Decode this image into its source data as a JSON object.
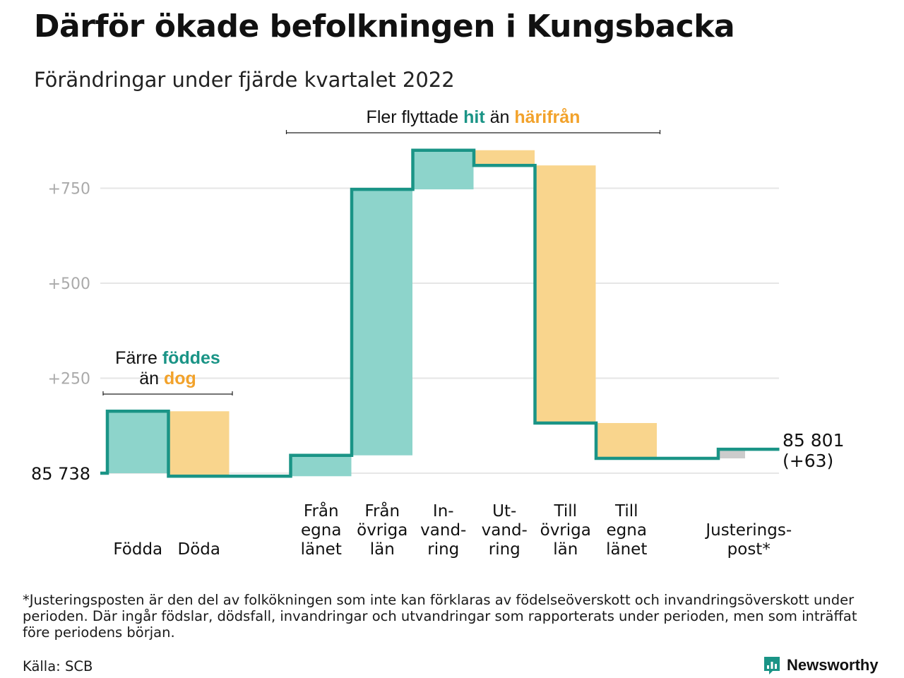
{
  "title": "Därför ökade befolkningen i Kungsbacka",
  "subtitle": "Förändringar under fjärde kvartalet 2022",
  "colors": {
    "increase": "#8dd4cb",
    "decrease": "#f9d58d",
    "adjustment": "#cccccc",
    "line": "#1a9486",
    "grid": "#e6e6e6",
    "axis_text": "#aaaaaa",
    "teal_text": "#1a9486",
    "orange_text": "#f2a22b"
  },
  "chart_data": {
    "type": "waterfall",
    "start_value": 85738,
    "start_label": "85 738",
    "end_value": 85801,
    "end_label": "85 801",
    "end_change_label": "(+63)",
    "y_ticks": [
      {
        "value": 250,
        "label": "+250"
      },
      {
        "value": 500,
        "label": "+500"
      },
      {
        "value": 750,
        "label": "+750"
      }
    ],
    "ylim": [
      -30,
      880
    ],
    "steps": [
      {
        "label_lines": [
          "Födda"
        ],
        "change": 163,
        "kind": "increase"
      },
      {
        "label_lines": [
          "Döda"
        ],
        "change": -171,
        "kind": "decrease"
      },
      {
        "label_lines": [
          ""
        ],
        "change": 0,
        "kind": "gap"
      },
      {
        "label_lines": [
          "Från",
          "egna",
          "länet"
        ],
        "change": 55,
        "kind": "increase"
      },
      {
        "label_lines": [
          "Från",
          "övriga",
          "län"
        ],
        "change": 700,
        "kind": "increase"
      },
      {
        "label_lines": [
          "In-",
          "vand-",
          "ring"
        ],
        "change": 103,
        "kind": "increase"
      },
      {
        "label_lines": [
          "Ut-",
          "vand-",
          "ring"
        ],
        "change": -40,
        "kind": "decrease"
      },
      {
        "label_lines": [
          "Till",
          "övriga",
          "län"
        ],
        "change": -678,
        "kind": "decrease"
      },
      {
        "label_lines": [
          "Till",
          "egna",
          "länet"
        ],
        "change": -93,
        "kind": "decrease"
      },
      {
        "label_lines": [
          ""
        ],
        "change": 0,
        "kind": "gap"
      },
      {
        "label_lines": [
          "Justerings-",
          "post*"
        ],
        "change": 24,
        "kind": "adjustment"
      }
    ],
    "annotations": [
      {
        "lines": [
          [
            {
              "text": "Färre ",
              "color": "dark"
            },
            {
              "text": "föddes",
              "color": "teal"
            }
          ],
          [
            {
              "text": "än ",
              "color": "dark"
            },
            {
              "text": "dog",
              "color": "orange"
            }
          ]
        ],
        "spans_steps": [
          0,
          1
        ]
      },
      {
        "lines": [
          [
            {
              "text": "Fler flyttade ",
              "color": "dark"
            },
            {
              "text": "hit",
              "color": "teal"
            },
            {
              "text": " än ",
              "color": "dark"
            },
            {
              "text": "härifrån",
              "color": "orange"
            }
          ]
        ],
        "spans_steps": [
          3,
          8
        ]
      }
    ]
  },
  "footnote": "*Justeringsposten är den del av folkökningen som inte kan förklaras av födelseöverskott och invandringsöverskott under perioden. Där ingår födslar, dödsfall, invandringar och utvandringar som rapporterats under perioden, men som inträffat före periodens början.",
  "source": "Källa: SCB",
  "brand": {
    "name": "Newsworthy",
    "icon": "newsworthy-logo-icon"
  }
}
